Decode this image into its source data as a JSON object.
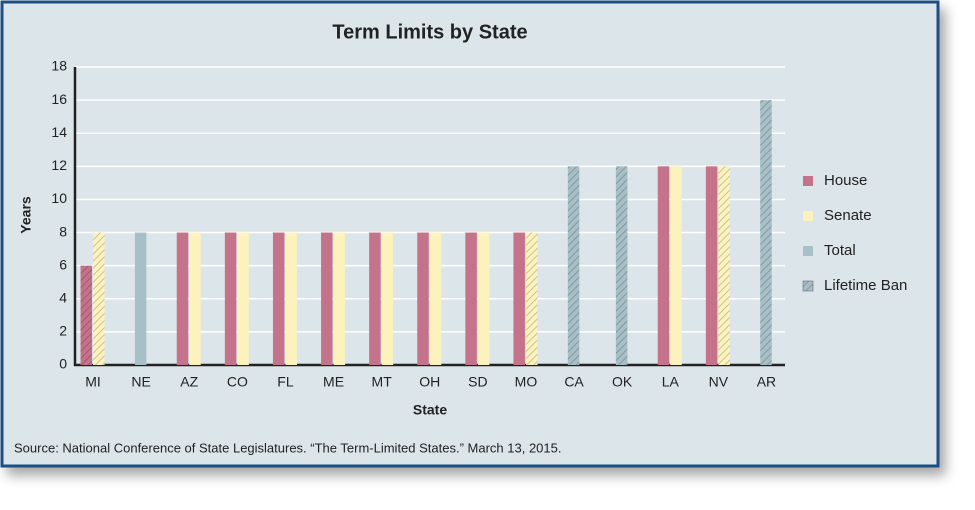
{
  "chart_data": {
    "type": "bar",
    "title": "Term Limits by State",
    "x_label": "State",
    "y_label": "Years",
    "categories": [
      "MI",
      "NE",
      "AZ",
      "CO",
      "FL",
      "ME",
      "MT",
      "OH",
      "SD",
      "MO",
      "CA",
      "OK",
      "LA",
      "NV",
      "AR"
    ],
    "series": [
      {
        "name": "House",
        "color": "#c5738a",
        "values": [
          6,
          null,
          8,
          8,
          8,
          8,
          8,
          8,
          8,
          8,
          null,
          null,
          12,
          12,
          null
        ],
        "lifetime_ban": [
          true,
          false,
          false,
          false,
          false,
          false,
          false,
          false,
          false,
          false,
          false,
          false,
          false,
          false,
          false
        ]
      },
      {
        "name": "Senate",
        "color": "#fcf2bd",
        "values": [
          8,
          null,
          8,
          8,
          8,
          8,
          8,
          8,
          8,
          8,
          null,
          null,
          12,
          12,
          null
        ],
        "lifetime_ban": [
          true,
          false,
          false,
          false,
          false,
          false,
          false,
          false,
          false,
          true,
          false,
          false,
          false,
          true,
          false
        ]
      },
      {
        "name": "Total",
        "color": "#a7bfc7",
        "values": [
          null,
          8,
          null,
          null,
          null,
          null,
          null,
          null,
          null,
          null,
          12,
          12,
          null,
          null,
          16
        ],
        "lifetime_ban": [
          false,
          false,
          false,
          false,
          false,
          false,
          false,
          false,
          false,
          false,
          true,
          true,
          false,
          false,
          true
        ]
      }
    ],
    "lifetime_ban_label": "Lifetime Ban",
    "ylim": [
      0,
      18
    ],
    "yticks": [
      0,
      2,
      4,
      6,
      8,
      10,
      12,
      14,
      16,
      18
    ],
    "grid": true,
    "source": "Source: National Conference of State Legislatures. “The Term-Limited States.” March 13, 2015."
  }
}
